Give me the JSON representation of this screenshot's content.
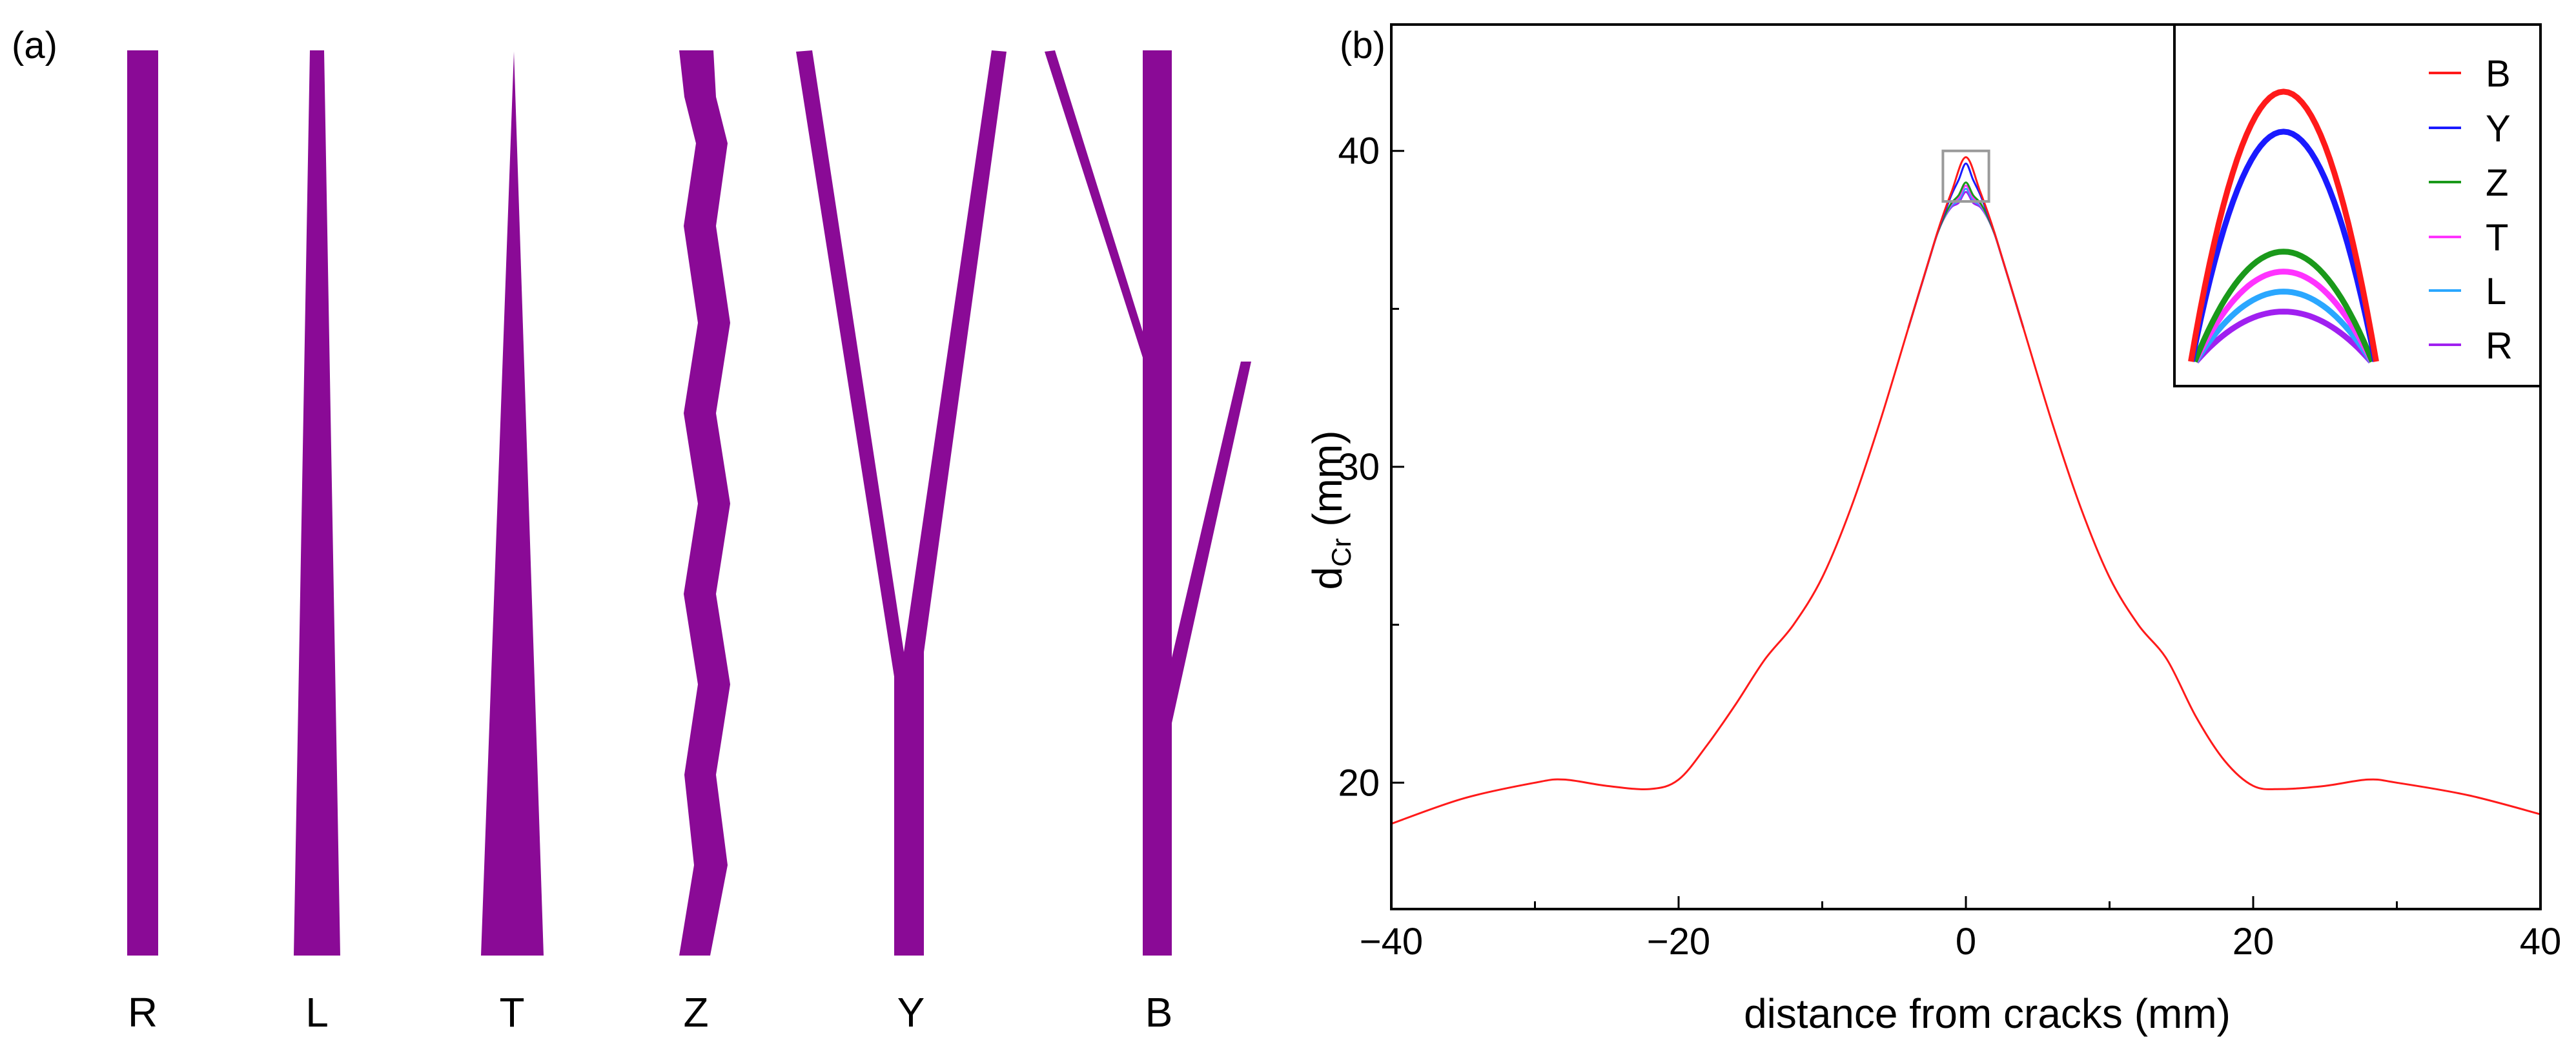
{
  "panel_a": {
    "label": "(a)",
    "crack_color": "#8a0a96",
    "cracks": [
      {
        "id": "R",
        "label": "R"
      },
      {
        "id": "L",
        "label": "L"
      },
      {
        "id": "T",
        "label": "T"
      },
      {
        "id": "Z",
        "label": "Z"
      },
      {
        "id": "Y",
        "label": "Y"
      },
      {
        "id": "B",
        "label": "B"
      }
    ]
  },
  "panel_b": {
    "label": "(b)",
    "xlabel": "distance from cracks (mm)",
    "ylabel_main": "d",
    "ylabel_sub": "Cr",
    "ylabel_unit": " (mm)",
    "inset_legend": [
      {
        "name": "B",
        "color": "#ff1a1a"
      },
      {
        "name": "Y",
        "color": "#1a1aff"
      },
      {
        "name": "Z",
        "color": "#1a991a"
      },
      {
        "name": "T",
        "color": "#ff33ff"
      },
      {
        "name": "L",
        "color": "#2aa7ff"
      },
      {
        "name": "R",
        "color": "#a020f0"
      }
    ]
  },
  "chart_data": {
    "type": "line",
    "title": "",
    "xlabel": "distance from cracks (mm)",
    "ylabel": "dCr (mm)",
    "xlim": [
      -40,
      40
    ],
    "ylim": [
      16,
      44
    ],
    "xticks": [
      -40,
      -20,
      0,
      20,
      40
    ],
    "yticks": [
      20,
      30,
      40
    ],
    "series": [
      {
        "name": "B",
        "color": "#ff1a1a",
        "x": [
          -40,
          -35,
          -30,
          -28,
          -25,
          -22,
          -20,
          -18,
          -16,
          -14,
          -12,
          -10,
          -8,
          -6,
          -4,
          -2,
          -1,
          0,
          1,
          2,
          4,
          6,
          8,
          10,
          12,
          14,
          16,
          18,
          20,
          22,
          25,
          28,
          30,
          35,
          40
        ],
        "y": [
          18.7,
          19.5,
          20.0,
          20.1,
          19.9,
          19.8,
          20.1,
          21.2,
          22.5,
          23.9,
          25.0,
          26.5,
          28.7,
          31.4,
          34.4,
          37.4,
          38.7,
          39.8,
          38.7,
          37.4,
          34.4,
          31.4,
          28.7,
          26.5,
          25.0,
          23.9,
          22.1,
          20.7,
          19.9,
          19.8,
          19.9,
          20.1,
          20.0,
          19.6,
          19.0
        ]
      }
    ],
    "inset": {
      "peak_values": [
        {
          "name": "B",
          "value": 39.8
        },
        {
          "name": "Y",
          "value": 39.6
        },
        {
          "name": "Z",
          "value": 39.0
        },
        {
          "name": "T",
          "value": 38.9
        },
        {
          "name": "L",
          "value": 38.8
        },
        {
          "name": "R",
          "value": 38.7
        }
      ]
    }
  }
}
